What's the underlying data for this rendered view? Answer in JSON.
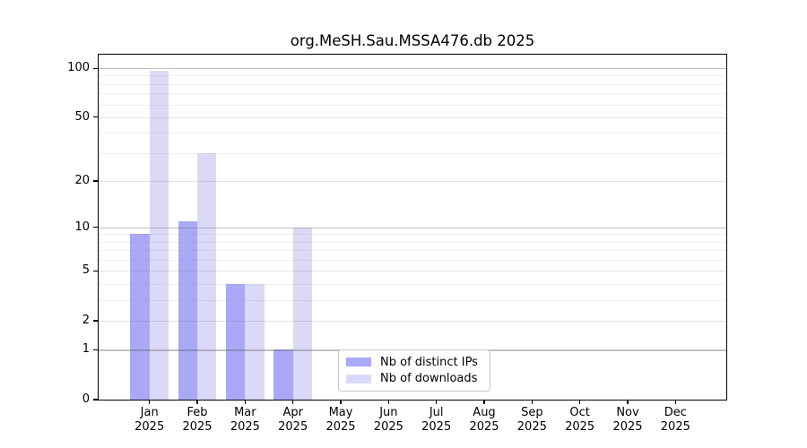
{
  "chart_data": {
    "type": "bar",
    "title": "org.MeSH.Sau.MSSA476.db 2025",
    "categories": [
      "Jan",
      "Feb",
      "Mar",
      "Apr",
      "May",
      "Jun",
      "Jul",
      "Aug",
      "Sep",
      "Oct",
      "Nov",
      "Dec"
    ],
    "category_year": "2025",
    "series": [
      {
        "name": "Nb of distinct IPs",
        "color": "#a9a9f6",
        "values": [
          9,
          11,
          4,
          1,
          0,
          0,
          0,
          0,
          0,
          0,
          0,
          0
        ]
      },
      {
        "name": "Nb of downloads",
        "color": "#dadaf8",
        "values": [
          97,
          30,
          4,
          10,
          0,
          0,
          0,
          0,
          0,
          0,
          0,
          0
        ]
      }
    ],
    "y_scale": "log1p",
    "ylim": [
      0,
      121
    ],
    "y_ticks": [
      0,
      1,
      2,
      5,
      10,
      20,
      50,
      100
    ],
    "y_gridlines": {
      "major": [
        1,
        10,
        100
      ],
      "mid": [
        2,
        5,
        20,
        50
      ],
      "minor": [
        3,
        4,
        6,
        7,
        8,
        9,
        30,
        40,
        60,
        70,
        80,
        90
      ]
    },
    "grid": "horizontal",
    "legend_position": "lower center",
    "xlabel": "",
    "ylabel": ""
  }
}
